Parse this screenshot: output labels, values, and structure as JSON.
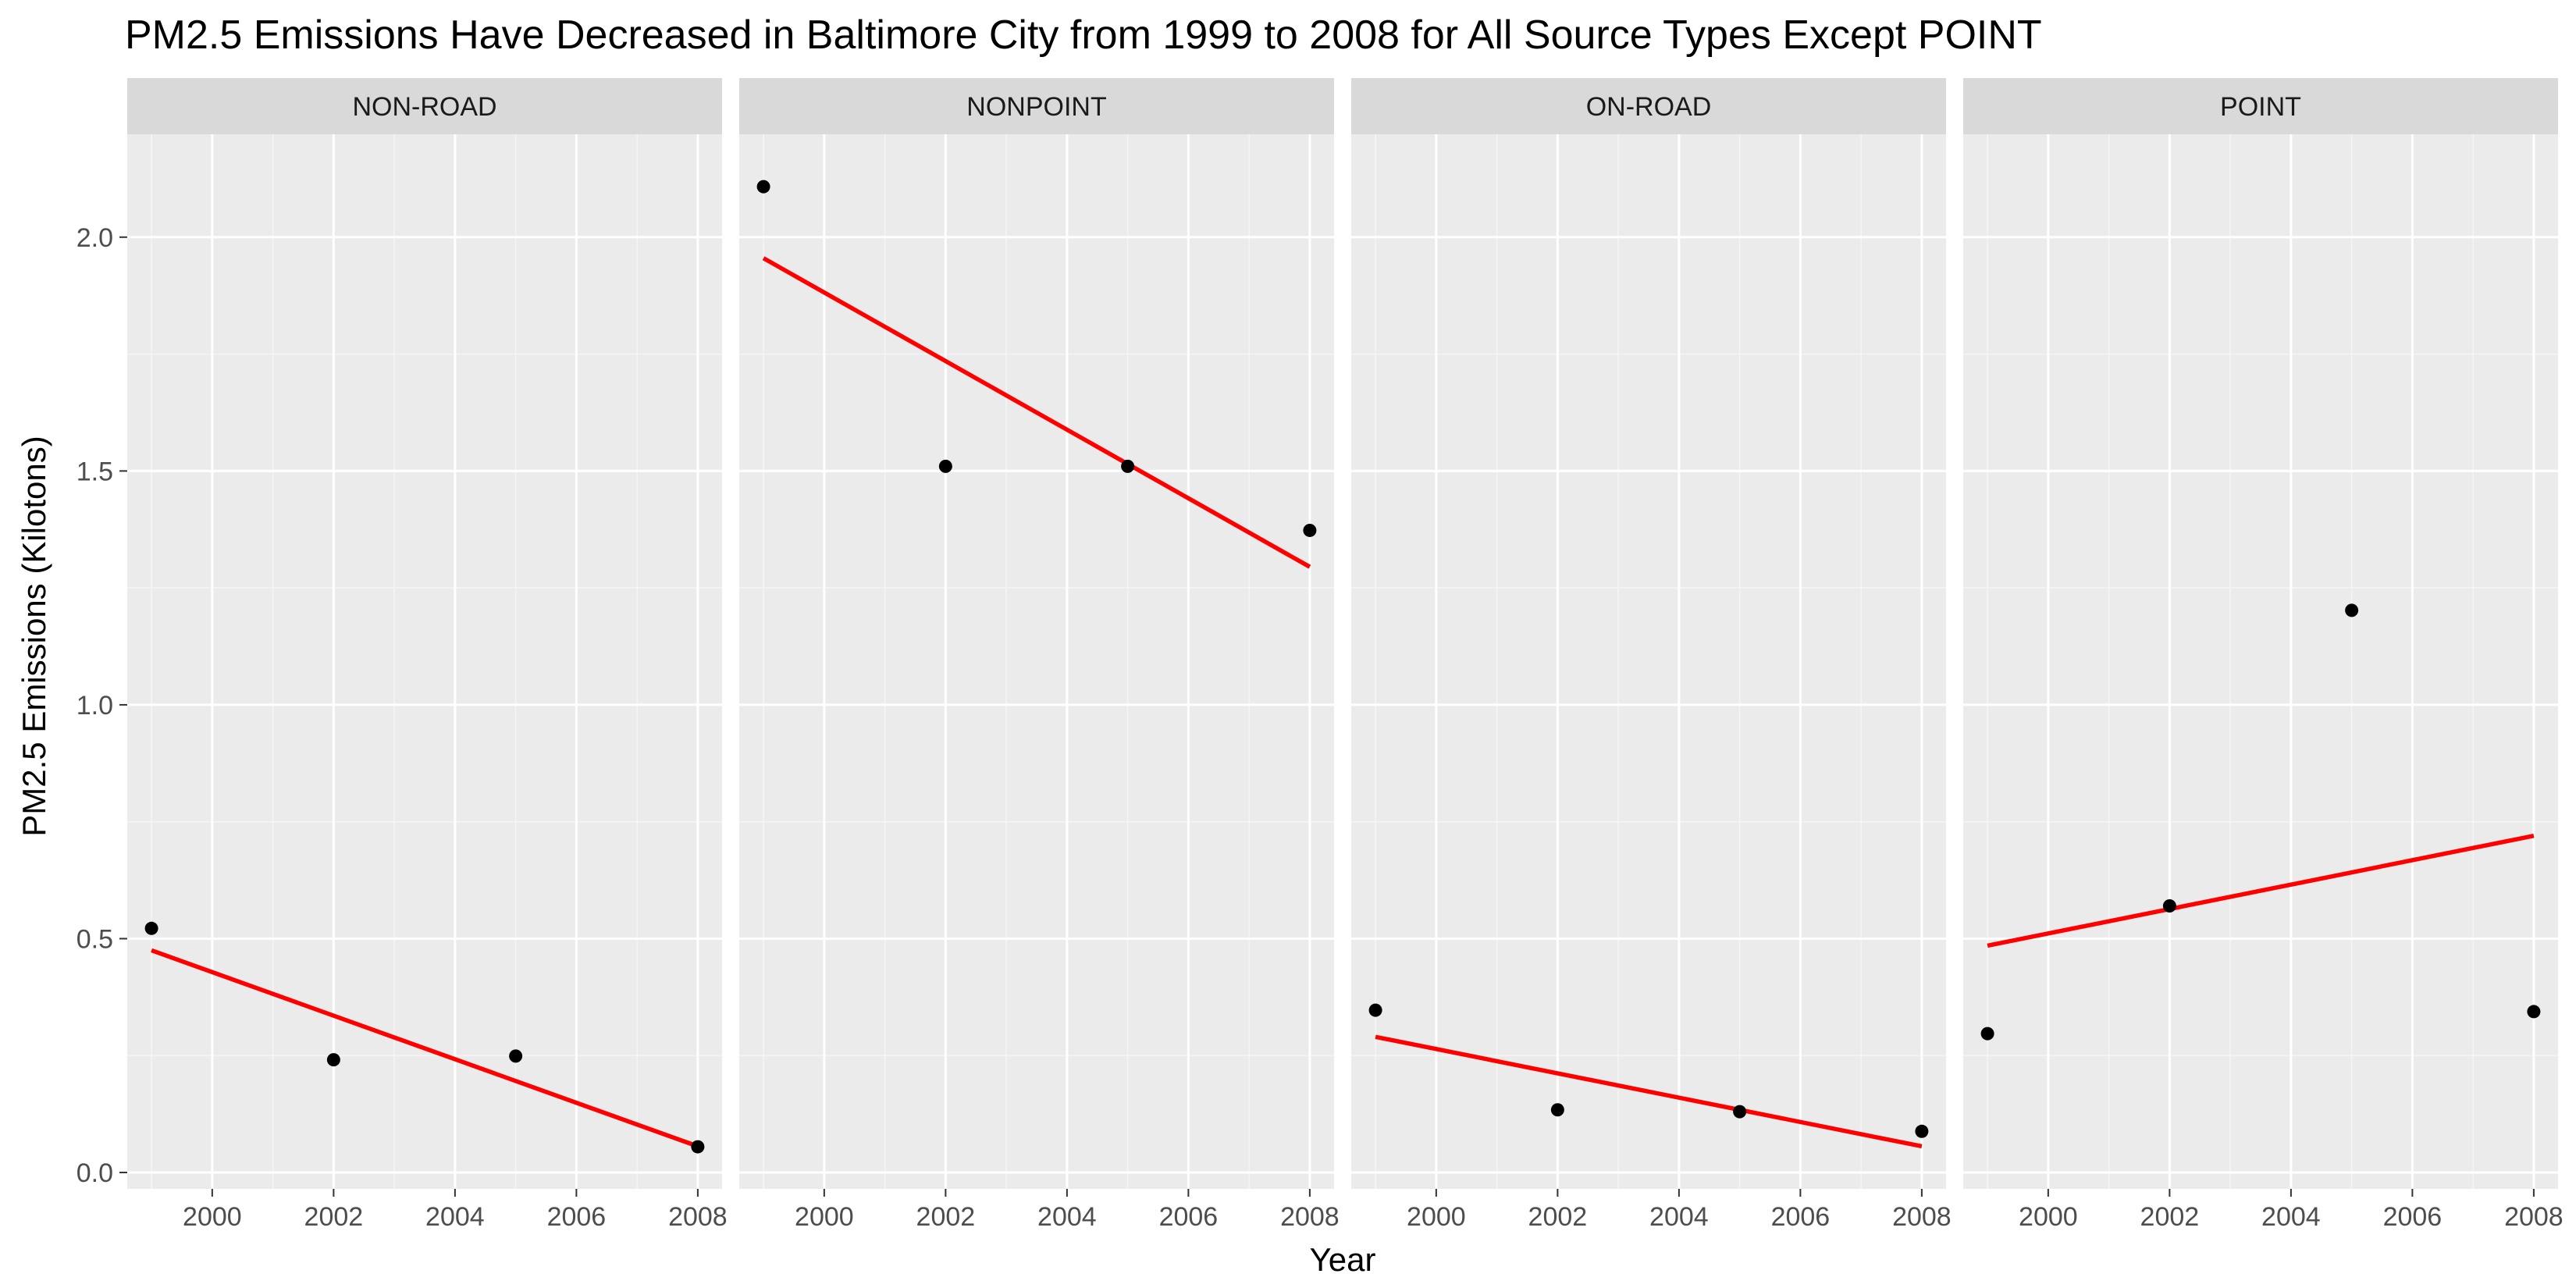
{
  "chart_data": {
    "type": "scatter",
    "title": "PM2.5 Emissions Have Decreased in Baltimore City from 1999 to 2008 for All Source Types Except POINT",
    "xlabel": "Year",
    "ylabel": "PM2.5 Emissions (Kilotons)",
    "xlim": [
      1998.6,
      2008.4
    ],
    "ylim": [
      -0.035,
      2.22
    ],
    "x_ticks": [
      2000,
      2002,
      2004,
      2006,
      2008
    ],
    "x_tick_labels": [
      "2000",
      "2002",
      "2004",
      "2006",
      "2008"
    ],
    "y_ticks": [
      0.0,
      0.5,
      1.0,
      1.5,
      2.0
    ],
    "y_tick_labels": [
      "0.0",
      "0.5",
      "1.0",
      "1.5",
      "2.0"
    ],
    "grid": true,
    "trend_line_color": "#ff0000",
    "point_color": "#000000",
    "panel_background": "#ebebeb",
    "strip_background": "#d9d9d9",
    "facets": [
      {
        "name": "NON-ROAD",
        "x": [
          1999,
          2002,
          2005,
          2008
        ],
        "y": [
          0.522,
          0.241,
          0.249,
          0.055
        ],
        "trend": {
          "x": [
            1999,
            2008
          ],
          "y": [
            0.475,
            0.056
          ]
        }
      },
      {
        "name": "NONPOINT",
        "x": [
          1999,
          2002,
          2005,
          2008
        ],
        "y": [
          2.108,
          1.51,
          1.51,
          1.373
        ],
        "trend": {
          "x": [
            1999,
            2008
          ],
          "y": [
            1.955,
            1.295
          ]
        }
      },
      {
        "name": "ON-ROAD",
        "x": [
          1999,
          2002,
          2005,
          2008
        ],
        "y": [
          0.347,
          0.134,
          0.13,
          0.088
        ],
        "trend": {
          "x": [
            1999,
            2008
          ],
          "y": [
            0.29,
            0.056
          ]
        }
      },
      {
        "name": "POINT",
        "x": [
          1999,
          2002,
          2005,
          2008
        ],
        "y": [
          0.297,
          0.57,
          1.202,
          0.344
        ],
        "trend": {
          "x": [
            1999,
            2008
          ],
          "y": [
            0.485,
            0.72
          ]
        }
      }
    ]
  }
}
